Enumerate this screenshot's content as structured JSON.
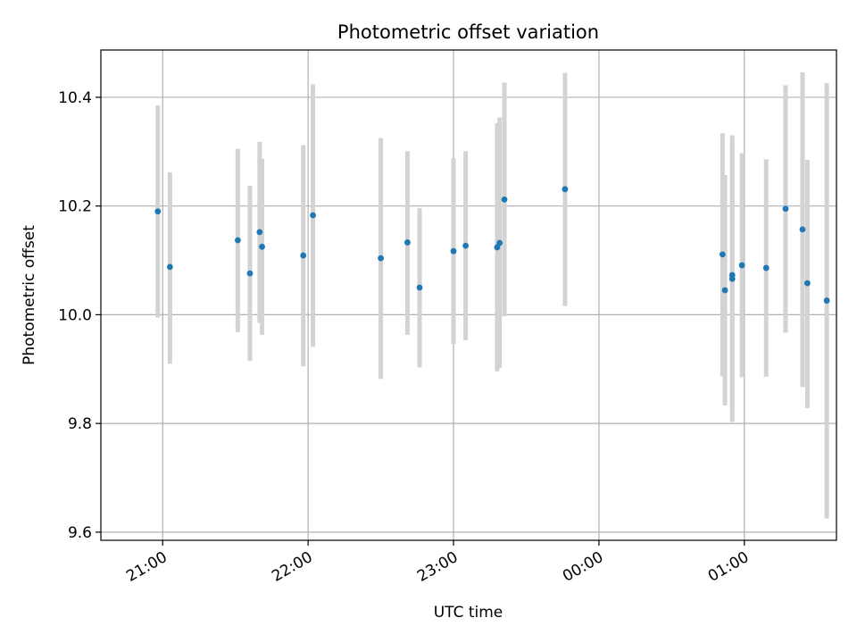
{
  "chart_data": {
    "type": "scatter",
    "title": "Photometric offset variation",
    "xlabel": "UTC time",
    "ylabel": "Photometric offset",
    "x_range_minutes": [
      1234.5,
      1538
    ],
    "ylim": [
      9.585,
      10.487
    ],
    "grid": true,
    "legend": "none",
    "colors": {
      "point": "#1f77b4",
      "error_bar": "#d3d3d3",
      "grid": "#b0b0b0",
      "axes": "#000000"
    },
    "x_ticks": [
      {
        "label": "21:00",
        "minutes": 1260
      },
      {
        "label": "22:00",
        "minutes": 1320
      },
      {
        "label": "23:00",
        "minutes": 1380
      },
      {
        "label": "00:00",
        "minutes": 1440
      },
      {
        "label": "01:00",
        "minutes": 1500
      }
    ],
    "y_ticks": [
      {
        "label": "9.6",
        "value": 9.6
      },
      {
        "label": "9.8",
        "value": 9.8
      },
      {
        "label": "10.0",
        "value": 10.0
      },
      {
        "label": "10.2",
        "value": 10.2
      },
      {
        "label": "10.4",
        "value": 10.4
      }
    ],
    "points": [
      {
        "time": "20:58",
        "y": 10.19,
        "err_low": 9.995,
        "err_high": 10.385
      },
      {
        "time": "21:03",
        "y": 10.088,
        "err_low": 9.91,
        "err_high": 10.262
      },
      {
        "time": "21:31",
        "y": 10.137,
        "err_low": 9.968,
        "err_high": 10.305
      },
      {
        "time": "21:36",
        "y": 10.076,
        "err_low": 9.915,
        "err_high": 10.237
      },
      {
        "time": "21:40",
        "y": 10.152,
        "err_low": 9.985,
        "err_high": 10.318
      },
      {
        "time": "21:41",
        "y": 10.125,
        "err_low": 9.963,
        "err_high": 10.287
      },
      {
        "time": "21:58",
        "y": 10.109,
        "err_low": 9.905,
        "err_high": 10.312
      },
      {
        "time": "22:02",
        "y": 10.183,
        "err_low": 9.941,
        "err_high": 10.424
      },
      {
        "time": "22:30",
        "y": 10.104,
        "err_low": 9.882,
        "err_high": 10.325
      },
      {
        "time": "22:41",
        "y": 10.133,
        "err_low": 9.963,
        "err_high": 10.301
      },
      {
        "time": "22:46",
        "y": 10.05,
        "err_low": 9.903,
        "err_high": 10.196
      },
      {
        "time": "23:00",
        "y": 10.117,
        "err_low": 9.946,
        "err_high": 10.288
      },
      {
        "time": "23:05",
        "y": 10.127,
        "err_low": 9.953,
        "err_high": 10.301
      },
      {
        "time": "23:18",
        "y": 10.124,
        "err_low": 9.896,
        "err_high": 10.352
      },
      {
        "time": "23:19",
        "y": 10.132,
        "err_low": 9.902,
        "err_high": 10.363
      },
      {
        "time": "23:21",
        "y": 10.212,
        "err_low": 9.997,
        "err_high": 10.427
      },
      {
        "time": "23:46",
        "y": 10.231,
        "err_low": 10.016,
        "err_high": 10.445
      },
      {
        "time": "00:51",
        "y": 10.111,
        "err_low": 9.887,
        "err_high": 10.334
      },
      {
        "time": "00:52",
        "y": 10.045,
        "err_low": 9.833,
        "err_high": 10.257
      },
      {
        "time": "00:55",
        "y": 10.066,
        "err_low": 9.803,
        "err_high": 10.33
      },
      {
        "time": "00:55",
        "y": 10.073,
        "err_low": 9.829,
        "err_high": 10.316
      },
      {
        "time": "00:59",
        "y": 10.091,
        "err_low": 9.885,
        "err_high": 10.297
      },
      {
        "time": "01:09",
        "y": 10.086,
        "err_low": 9.886,
        "err_high": 10.286
      },
      {
        "time": "01:17",
        "y": 10.195,
        "err_low": 9.967,
        "err_high": 10.422
      },
      {
        "time": "01:24",
        "y": 10.157,
        "err_low": 9.867,
        "err_high": 10.446
      },
      {
        "time": "01:26",
        "y": 10.058,
        "err_low": 9.828,
        "err_high": 10.285
      },
      {
        "time": "01:34",
        "y": 10.026,
        "err_low": 9.625,
        "err_high": 10.426
      }
    ]
  }
}
